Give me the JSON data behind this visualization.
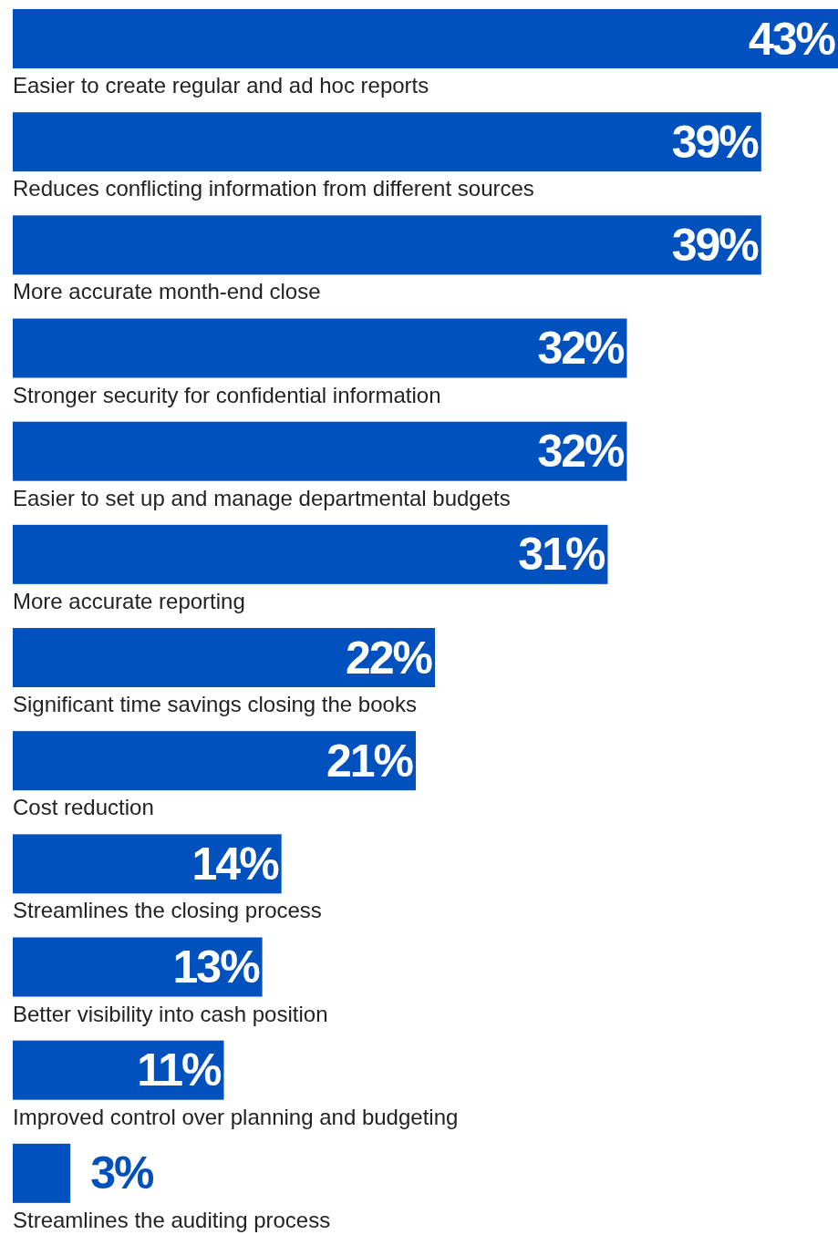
{
  "chart_data": {
    "type": "bar",
    "orientation": "horizontal",
    "categories": [
      "Easier to create regular and ad hoc reports",
      "Reduces conflicting information from different sources",
      "More accurate month-end close",
      "Stronger security for confidential information",
      "Easier to set up and manage departmental budgets",
      "More accurate reporting",
      "Significant time savings closing the books",
      "Cost reduction",
      "Streamlines the closing process",
      "Better visibility into cash position",
      "Improved control over planning and budgeting",
      "Streamlines the auditing process"
    ],
    "values": [
      43,
      39,
      39,
      32,
      32,
      31,
      22,
      21,
      14,
      13,
      11,
      3
    ],
    "value_labels": [
      "43%",
      "39%",
      "39%",
      "32%",
      "32%",
      "31%",
      "22%",
      "21%",
      "14%",
      "13%",
      "11%",
      "3%"
    ],
    "color": "#0050be"
  }
}
